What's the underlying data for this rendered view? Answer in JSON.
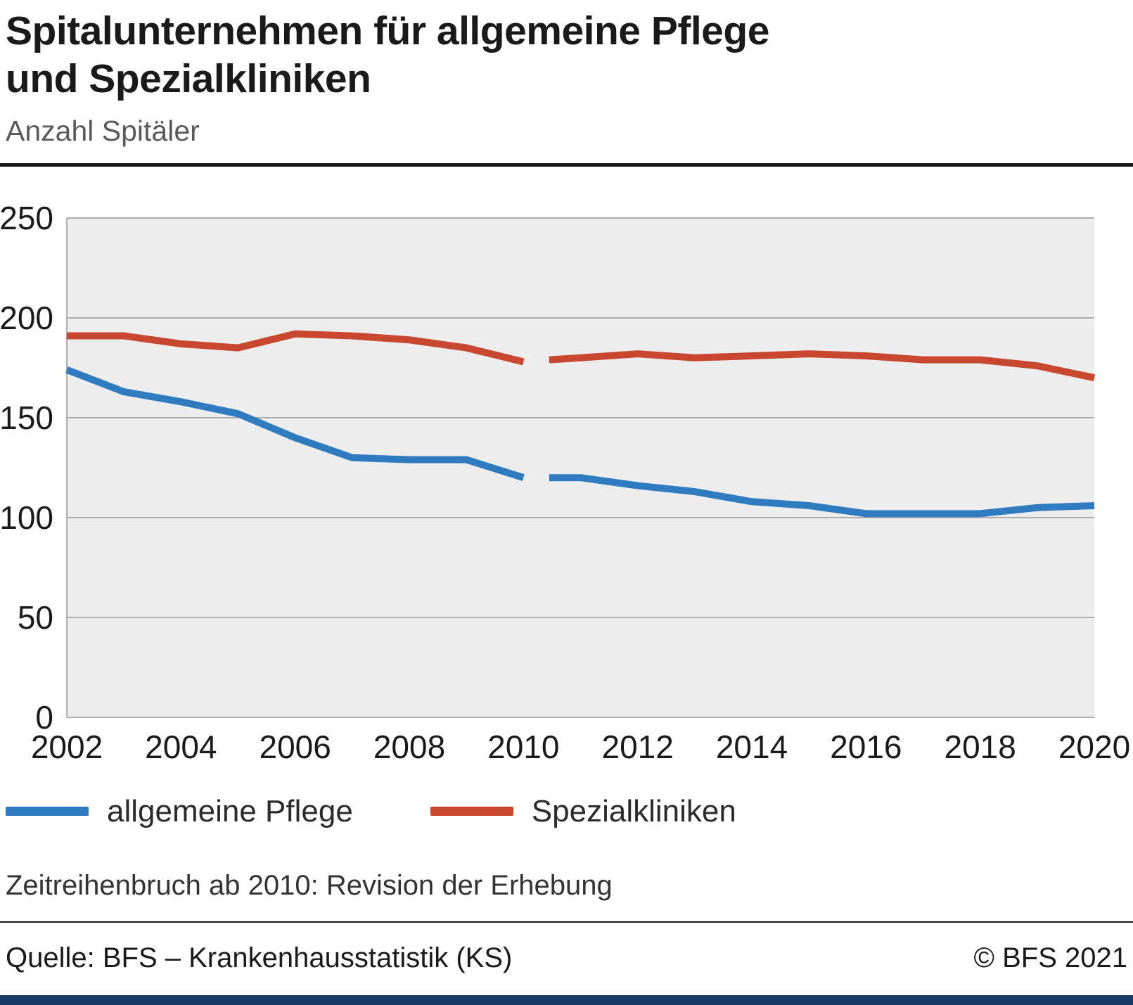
{
  "header": {
    "title": "Spitalunternehmen für allgemeine Pflege\nund Spezialkliniken",
    "subtitle": "Anzahl Spitäler"
  },
  "note": "Zeitreihenbruch ab 2010: Revision der Erhebung",
  "footer": {
    "source": "Quelle: BFS – Krankenhausstatistik (KS)",
    "copyright": "© BFS 2021",
    "brand_bar_color": "#1a3a66"
  },
  "chart_data": {
    "type": "line",
    "title": "Spitalunternehmen für allgemeine Pflege und Spezialkliniken",
    "subtitle": "Anzahl Spitäler",
    "ylabel": "Anzahl Spitäler",
    "ylim": [
      0,
      250
    ],
    "yticks": [
      0,
      50,
      100,
      150,
      200,
      250
    ],
    "xlim": [
      2002,
      2020
    ],
    "xticks": [
      2002,
      2004,
      2006,
      2008,
      2010,
      2012,
      2014,
      2016,
      2018,
      2020
    ],
    "grid": "horizontal",
    "legend_position": "bottom",
    "plot_bg": "#ededed",
    "grid_color": "#adadad",
    "break_note": "Zeitreihenbruch ab 2010: Revision der Erhebung",
    "series": [
      {
        "name": "allgemeine Pflege",
        "color": "#2f7bbf",
        "segments": [
          {
            "x": [
              2002,
              2003,
              2004,
              2005,
              2006,
              2007,
              2008,
              2009,
              2010
            ],
            "y": [
              174,
              163,
              158,
              152,
              140,
              130,
              129,
              129,
              120
            ]
          },
          {
            "x": [
              2010.45,
              2011,
              2012,
              2013,
              2014,
              2015,
              2016,
              2017,
              2018,
              2019,
              2020
            ],
            "y": [
              120,
              120,
              116,
              113,
              108,
              106,
              102,
              102,
              102,
              105,
              106
            ]
          }
        ]
      },
      {
        "name": "Spezialkliniken",
        "color": "#c9472f",
        "segments": [
          {
            "x": [
              2002,
              2003,
              2004,
              2005,
              2006,
              2007,
              2008,
              2009,
              2010
            ],
            "y": [
              191,
              191,
              187,
              185,
              192,
              191,
              189,
              185,
              178
            ]
          },
          {
            "x": [
              2010.45,
              2011,
              2012,
              2013,
              2014,
              2015,
              2016,
              2017,
              2018,
              2019,
              2020
            ],
            "y": [
              179,
              180,
              182,
              180,
              181,
              182,
              181,
              179,
              179,
              176,
              170
            ]
          }
        ]
      }
    ]
  }
}
